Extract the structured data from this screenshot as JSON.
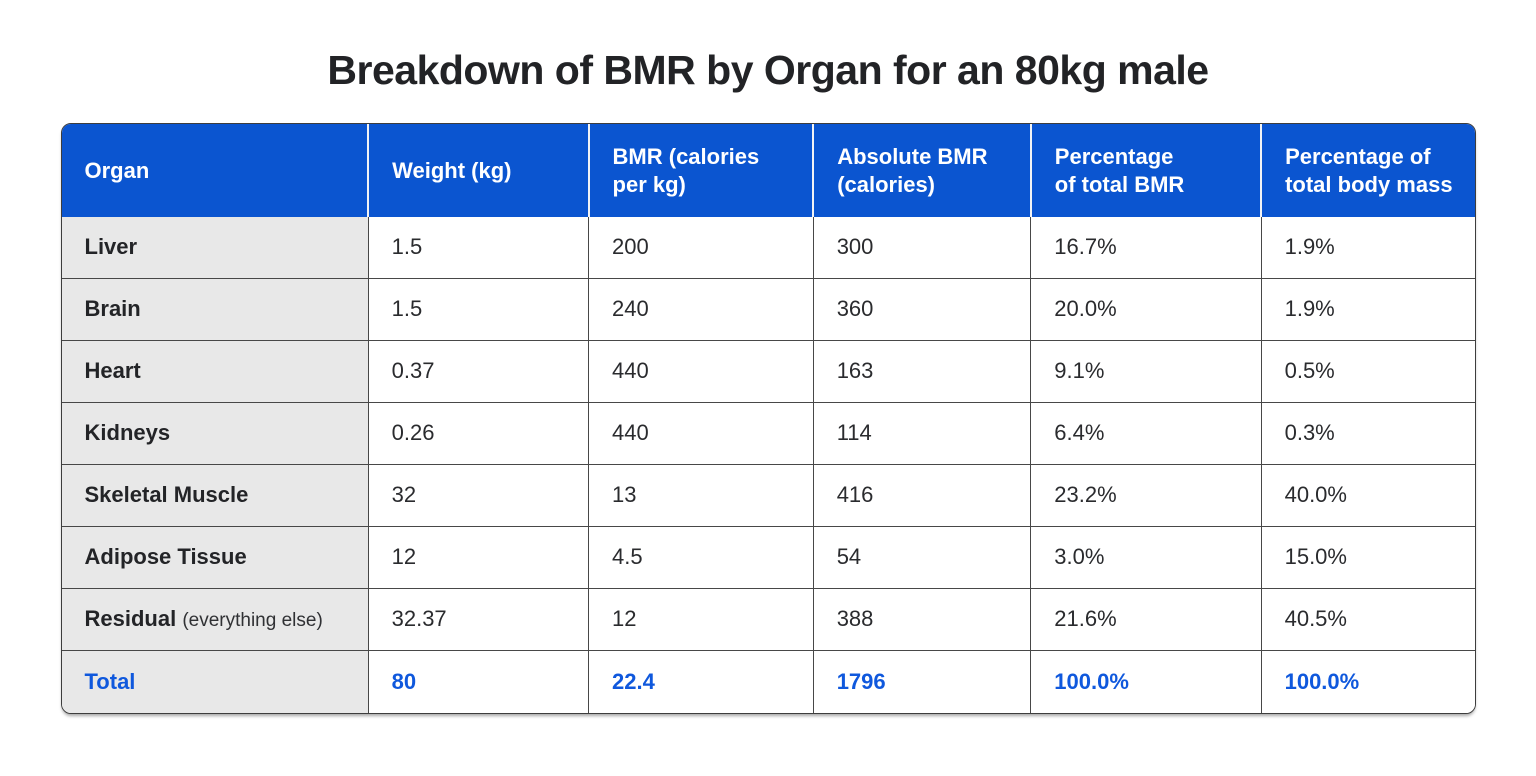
{
  "page": {
    "title": "Breakdown of BMR by Organ for an 80kg male"
  },
  "colors": {
    "header_bg": "#0b55d0",
    "header_text": "#ffffff",
    "organ_column_bg": "#e8e8e8",
    "grid_border": "#474747",
    "total_text": "#0f58dd",
    "body_text": "#2a2b2e"
  },
  "table": {
    "headers": [
      "Organ",
      "Weight (kg)",
      "BMR (calories\nper kg)",
      "Absolute BMR\n(calories)",
      "Percentage\nof total BMR",
      "Percentage of\ntotal body mass"
    ],
    "rows": [
      {
        "organ": "Liver",
        "note": "",
        "values": [
          "1.5",
          "200",
          "300",
          "16.7%",
          "1.9%"
        ]
      },
      {
        "organ": "Brain",
        "note": "",
        "values": [
          "1.5",
          "240",
          "360",
          "20.0%",
          "1.9%"
        ]
      },
      {
        "organ": "Heart",
        "note": "",
        "values": [
          "0.37",
          "440",
          "163",
          "9.1%",
          "0.5%"
        ]
      },
      {
        "organ": "Kidneys",
        "note": "",
        "values": [
          "0.26",
          "440",
          "114",
          "6.4%",
          "0.3%"
        ]
      },
      {
        "organ": "Skeletal Muscle",
        "note": "",
        "values": [
          "32",
          "13",
          "416",
          "23.2%",
          "40.0%"
        ]
      },
      {
        "organ": "Adipose Tissue",
        "note": "",
        "values": [
          "12",
          "4.5",
          "54",
          "3.0%",
          "15.0%"
        ]
      },
      {
        "organ": "Residual",
        "note": "(everything else)",
        "values": [
          "32.37",
          "12",
          "388",
          "21.6%",
          "40.5%"
        ]
      }
    ],
    "total": {
      "label": "Total",
      "values": [
        "80",
        "22.4",
        "1796",
        "100.0%",
        "100.0%"
      ]
    }
  },
  "chart_data": {
    "type": "table",
    "title": "Breakdown of BMR by Organ for an 80kg male",
    "columns": [
      "Organ",
      "Weight (kg)",
      "BMR (calories per kg)",
      "Absolute BMR (calories)",
      "Percentage of total BMR",
      "Percentage of total body mass"
    ],
    "rows": [
      [
        "Liver",
        1.5,
        200,
        300,
        "16.7%",
        "1.9%"
      ],
      [
        "Brain",
        1.5,
        240,
        360,
        "20.0%",
        "1.9%"
      ],
      [
        "Heart",
        0.37,
        440,
        163,
        "9.1%",
        "0.5%"
      ],
      [
        "Kidneys",
        0.26,
        440,
        114,
        "6.4%",
        "0.3%"
      ],
      [
        "Skeletal Muscle",
        32,
        13,
        416,
        "23.2%",
        "40.0%"
      ],
      [
        "Adipose Tissue",
        12,
        4.5,
        54,
        "3.0%",
        "15.0%"
      ],
      [
        "Residual (everything else)",
        32.37,
        12,
        388,
        "21.6%",
        "40.5%"
      ],
      [
        "Total",
        80,
        22.4,
        1796,
        "100.0%",
        "100.0%"
      ]
    ],
    "layout": {
      "header_style": "blue-filled",
      "first_column_shaded": true,
      "total_row_highlighted": true
    }
  }
}
